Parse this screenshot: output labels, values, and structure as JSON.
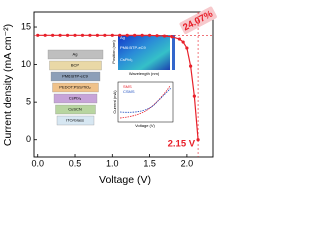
{
  "chart_data": {
    "type": "line",
    "x_label": "Voltage (V)",
    "y_label": "Current density (mA cm⁻²)",
    "x": [
      0,
      0.1,
      0.2,
      0.3,
      0.4,
      0.5,
      0.6,
      0.7,
      0.8,
      0.9,
      1.0,
      1.1,
      1.2,
      1.3,
      1.4,
      1.5,
      1.6,
      1.7,
      1.8,
      1.9,
      1.95,
      2.0,
      2.05,
      2.1,
      2.15
    ],
    "values": [
      13.9,
      13.9,
      13.9,
      13.9,
      13.9,
      13.9,
      13.9,
      13.9,
      13.9,
      13.9,
      13.9,
      13.9,
      13.9,
      13.9,
      13.9,
      13.9,
      13.85,
      13.8,
      13.7,
      13.4,
      13.0,
      12.2,
      9.8,
      5.8,
      0
    ],
    "color": "#e8202a",
    "xlim": [
      -0.05,
      2.35
    ],
    "ylim": [
      -2.3,
      17
    ],
    "xticks": [
      {
        "value": 0,
        "label": "0.0"
      },
      0.5,
      {
        "value": 1,
        "label": "1.0"
      },
      1.5,
      {
        "value": 2,
        "label": "2.0"
      }
    ],
    "yticks": [
      0,
      5,
      10,
      15
    ],
    "annotations": {
      "efficiency": "24.07%",
      "voc": "2.15 V"
    }
  },
  "insets": {
    "stack": [
      "Ag",
      "BCP",
      "PM6:BTP-eC9",
      "PEDOT:PSS/TiO₂",
      "CsPbI₃",
      "CuSCN",
      "ITO/Glass"
    ],
    "heatmap": {
      "x_label": "Wavelength (nm)",
      "y_label": "Position (nm)",
      "layers": [
        "Ag",
        "PM6:BTP-eC9",
        "CsPbI₃"
      ]
    },
    "dark": {
      "x_label": "Voltage (V)",
      "y_label": "Current (mA)",
      "series": [
        "SMS",
        "CSMS"
      ]
    }
  }
}
